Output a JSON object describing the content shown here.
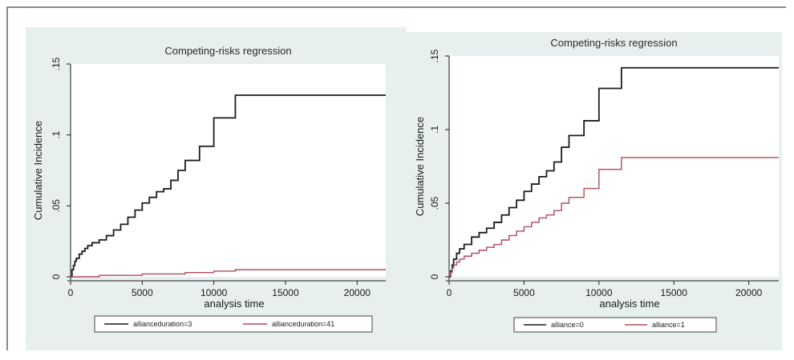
{
  "chart_data": [
    {
      "type": "line",
      "step": true,
      "title": "Competing-risks regression",
      "xlabel": "analysis time",
      "ylabel": "Cumulative Incidence",
      "xlim": [
        0,
        22000
      ],
      "ylim": [
        0,
        0.15
      ],
      "xticks": [
        0,
        5000,
        10000,
        15000,
        20000
      ],
      "xtick_labels": [
        "0",
        "5000",
        "10000",
        "15000",
        "20000"
      ],
      "yticks": [
        0,
        0.05,
        0.1,
        0.15
      ],
      "ytick_labels": [
        "0",
        ".05",
        ".1",
        ".15"
      ],
      "grid": false,
      "legend": "bottom",
      "series": [
        {
          "name": "allianceduration=3",
          "color": "#1c1c1c",
          "x": [
            0,
            100,
            200,
            300,
            400,
            600,
            800,
            1000,
            1200,
            1500,
            2000,
            2500,
            3000,
            3500,
            4000,
            4500,
            5000,
            5500,
            6000,
            6500,
            7000,
            7500,
            8000,
            8500,
            9000,
            9500,
            10000,
            10500,
            11000,
            11500,
            22000
          ],
          "y": [
            0,
            0.005,
            0.008,
            0.011,
            0.013,
            0.016,
            0.018,
            0.02,
            0.022,
            0.024,
            0.026,
            0.029,
            0.033,
            0.037,
            0.042,
            0.047,
            0.052,
            0.056,
            0.06,
            0.062,
            0.068,
            0.075,
            0.082,
            0.082,
            0.092,
            0.092,
            0.112,
            0.112,
            0.112,
            0.128,
            0.128
          ]
        },
        {
          "name": "allianceduration=41",
          "color": "#b04a5a",
          "x": [
            0,
            2000,
            5000,
            8000,
            10000,
            11500,
            22000
          ],
          "y": [
            0,
            0.001,
            0.002,
            0.003,
            0.004,
            0.005,
            0.005
          ]
        }
      ]
    },
    {
      "type": "line",
      "step": true,
      "title": "Competing-risks regression",
      "xlabel": "analysis time",
      "ylabel": "Cumulative Incidence",
      "xlim": [
        0,
        22000
      ],
      "ylim": [
        0,
        0.15
      ],
      "xticks": [
        0,
        5000,
        10000,
        15000,
        20000
      ],
      "xtick_labels": [
        "0",
        "5000",
        "10000",
        "15000",
        "20000"
      ],
      "yticks": [
        0,
        0.05,
        0.1,
        0.15
      ],
      "ytick_labels": [
        "0",
        ".05",
        ".1",
        ".15"
      ],
      "grid": false,
      "legend": "bottom",
      "series": [
        {
          "name": "alliance=0",
          "color": "#1c1c1c",
          "x": [
            0,
            100,
            200,
            300,
            500,
            700,
            1000,
            1500,
            2000,
            2500,
            3000,
            3500,
            4000,
            4500,
            5000,
            5500,
            6000,
            6500,
            7000,
            7500,
            8000,
            8500,
            9000,
            9500,
            10000,
            10500,
            11000,
            11500,
            22000
          ],
          "y": [
            0,
            0.004,
            0.008,
            0.012,
            0.016,
            0.019,
            0.022,
            0.027,
            0.03,
            0.033,
            0.037,
            0.042,
            0.047,
            0.052,
            0.058,
            0.063,
            0.068,
            0.072,
            0.078,
            0.088,
            0.096,
            0.096,
            0.106,
            0.106,
            0.128,
            0.128,
            0.128,
            0.142,
            0.142
          ]
        },
        {
          "name": "alliance=1",
          "color": "#b04a5a",
          "x": [
            0,
            100,
            200,
            300,
            500,
            700,
            1000,
            1500,
            2000,
            2500,
            3000,
            3500,
            4000,
            4500,
            5000,
            5500,
            6000,
            6500,
            7000,
            7500,
            8000,
            8500,
            9000,
            9500,
            10000,
            10500,
            11000,
            11500,
            22000
          ],
          "y": [
            0,
            0.003,
            0.006,
            0.008,
            0.01,
            0.012,
            0.014,
            0.016,
            0.018,
            0.02,
            0.022,
            0.025,
            0.028,
            0.031,
            0.034,
            0.037,
            0.04,
            0.042,
            0.045,
            0.05,
            0.054,
            0.054,
            0.06,
            0.06,
            0.073,
            0.073,
            0.073,
            0.081,
            0.081
          ]
        }
      ]
    }
  ]
}
